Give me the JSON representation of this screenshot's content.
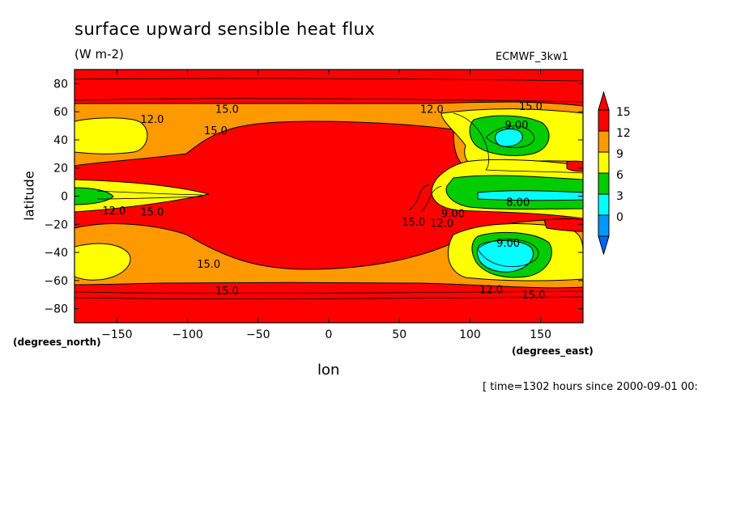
{
  "chart_data": {
    "type": "heatmap",
    "title": "surface upward sensible heat flux",
    "units": "(W m-2)",
    "dataset": "ECMWF_3kw1",
    "xlabel": "lon",
    "ylabel": "latitude",
    "x_unit_label": "(degrees_east)",
    "y_unit_label": "(degrees_north)",
    "timestamp": "[ time=1302 hours since 2000-09-01 00:",
    "xlim": [
      -180,
      180
    ],
    "ylim": [
      -90,
      90
    ],
    "x_ticks": [
      -150,
      -100,
      -50,
      0,
      50,
      100,
      150
    ],
    "y_ticks": [
      80,
      60,
      40,
      20,
      0,
      -20,
      -40,
      -60,
      -80
    ],
    "colorbar": {
      "levels": [
        {
          "label": "15",
          "color": "#ff0000"
        },
        {
          "label": "12",
          "color": "#ff9900"
        },
        {
          "label": "9",
          "color": "#ffff00"
        },
        {
          "label": "6",
          "color": "#00cc00"
        },
        {
          "label": "3",
          "color": "#00ffff"
        },
        {
          "label": "0",
          "color": "#0099ff"
        }
      ],
      "over_color": "#ff0000",
      "under_color": "#0066ff"
    },
    "contour_labels": [
      {
        "text": "15.0",
        "lon": -72,
        "lat": 62
      },
      {
        "text": "12.0",
        "lon": -125,
        "lat": 55
      },
      {
        "text": "15.0",
        "lon": -80,
        "lat": 47
      },
      {
        "text": "12.0",
        "lon": 73,
        "lat": 62
      },
      {
        "text": "15.0",
        "lon": 143,
        "lat": 64
      },
      {
        "text": "9.00",
        "lon": 133,
        "lat": 51
      },
      {
        "text": "8.00",
        "lon": 134,
        "lat": -4
      },
      {
        "text": "12.0",
        "lon": -152,
        "lat": -10
      },
      {
        "text": "15.0",
        "lon": -125,
        "lat": -11
      },
      {
        "text": "9.00",
        "lon": 88,
        "lat": -12
      },
      {
        "text": "15.0",
        "lon": 60,
        "lat": -18
      },
      {
        "text": "12.0",
        "lon": 80,
        "lat": -19
      },
      {
        "text": "9.00",
        "lon": 127,
        "lat": -33
      },
      {
        "text": "15.0",
        "lon": -85,
        "lat": -48
      },
      {
        "text": "15.0",
        "lon": -72,
        "lat": -67
      },
      {
        "text": "12.0",
        "lon": 115,
        "lat": -66
      },
      {
        "text": "15.0",
        "lon": 145,
        "lat": -70
      }
    ],
    "grid": false,
    "legend_position": "right"
  }
}
